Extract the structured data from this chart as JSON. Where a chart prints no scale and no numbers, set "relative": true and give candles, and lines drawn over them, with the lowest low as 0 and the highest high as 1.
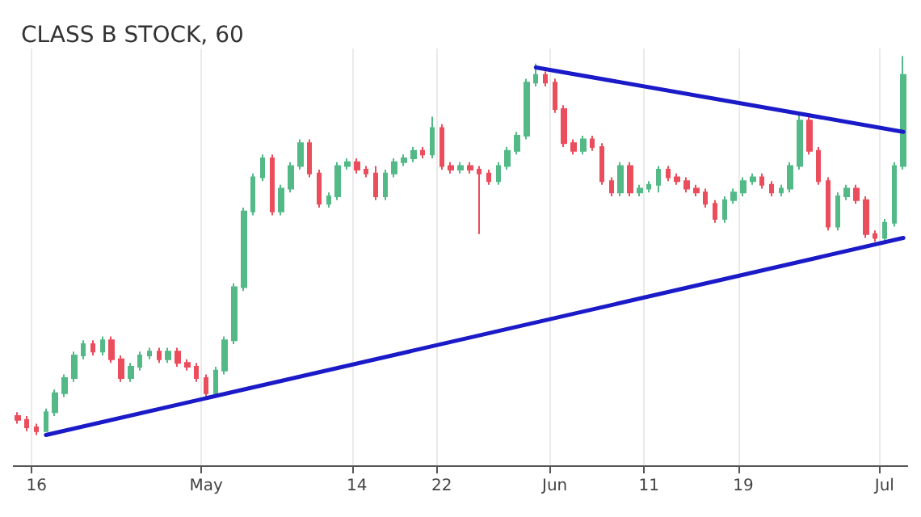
{
  "chart_data": {
    "type": "candlestick",
    "title": "CLASS B STOCK, 60",
    "relative": true,
    "grid": "x",
    "categories": [
      null,
      null,
      "16",
      null,
      null,
      null,
      null,
      null,
      null,
      null,
      null,
      null,
      null,
      null,
      null,
      null,
      null,
      null,
      null,
      null,
      "May",
      null,
      null,
      null,
      null,
      null,
      null,
      null,
      null,
      null,
      null,
      null,
      null,
      null,
      null,
      null,
      "14",
      null,
      null,
      null,
      null,
      null,
      null,
      null,
      null,
      "22",
      null,
      null,
      null,
      null,
      null,
      null,
      null,
      null,
      null,
      null,
      null,
      "Jun",
      null,
      null,
      null,
      null,
      null,
      null,
      null,
      null,
      null,
      "11",
      null,
      null,
      null,
      null,
      null,
      null,
      null,
      null,
      null,
      "19",
      null,
      null,
      null,
      null,
      null,
      null,
      null,
      null,
      null,
      null,
      null,
      null,
      null,
      null,
      "Jul",
      null,
      null
    ],
    "series": [
      {
        "colors": [
          "#eb4d5c",
          "#eb4d5c",
          "#eb4d5c",
          "#53b987",
          "#53b987",
          "#53b987",
          "#53b987",
          "#53b987",
          "#eb4d5c",
          "#53b987",
          "#eb4d5c",
          "#eb4d5c",
          "#53b987",
          "#53b987",
          "#53b987",
          "#eb4d5c",
          "#53b987",
          "#eb4d5c",
          "#eb4d5c",
          "#eb4d5c",
          "#eb4d5c",
          "#53b987",
          "#53b987",
          "#53b987",
          "#53b987",
          "#53b987",
          "#53b987",
          "#eb4d5c",
          "#53b987",
          "#53b987",
          "#53b987",
          "#eb4d5c",
          "#eb4d5c",
          "#53b987",
          "#53b987",
          "#53b987",
          "#eb4d5c",
          "#eb4d5c",
          "#eb4d5c",
          "#53b987",
          "#53b987",
          "#53b987",
          "#53b987",
          "#eb4d5c",
          "#53b987",
          "#eb4d5c",
          "#eb4d5c",
          "#53b987",
          "#eb4d5c",
          "#eb4d5c",
          "#eb4d5c",
          "#53b987",
          "#53b987",
          "#53b987",
          "#53b987",
          "#53b987",
          "#eb4d5c",
          "#eb4d5c",
          "#eb4d5c",
          "#eb4d5c",
          "#53b987",
          "#eb4d5c",
          "#eb4d5c",
          "#eb4d5c",
          "#53b987",
          "#eb4d5c",
          "#53b987",
          "#53b987",
          "#53b987",
          "#eb4d5c",
          "#eb4d5c",
          "#eb4d5c",
          "#eb4d5c",
          "#eb4d5c",
          "#eb4d5c",
          "#53b987",
          "#53b987",
          "#53b987",
          "#53b987",
          "#eb4d5c",
          "#eb4d5c",
          "#53b987",
          "#53b987",
          "#53b987",
          "#eb4d5c",
          "#eb4d5c",
          "#eb4d5c",
          "#53b987",
          "#53b987",
          "#eb4d5c",
          "#eb4d5c",
          "#eb4d5c",
          "#53b987",
          "#53b987",
          "#53b987"
        ],
        "ohlc": [
          [
            0.05,
            0.06,
            0.03,
            0.04
          ],
          [
            0.04,
            0.05,
            0.01,
            0.02
          ],
          [
            0.02,
            0.03,
            0,
            0.01
          ],
          [
            0.01,
            0.07,
            0.01,
            0.06
          ],
          [
            0.06,
            0.12,
            0.05,
            0.11
          ],
          [
            0.11,
            0.16,
            0.1,
            0.15
          ],
          [
            0.15,
            0.22,
            0.14,
            0.21
          ],
          [
            0.21,
            0.25,
            0.2,
            0.24
          ],
          [
            0.24,
            0.25,
            0.21,
            0.22
          ],
          [
            0.22,
            0.26,
            0.21,
            0.25
          ],
          [
            0.25,
            0.26,
            0.19,
            0.2
          ],
          [
            0.2,
            0.21,
            0.14,
            0.15
          ],
          [
            0.15,
            0.19,
            0.14,
            0.18
          ],
          [
            0.18,
            0.22,
            0.17,
            0.21
          ],
          [
            0.21,
            0.23,
            0.2,
            0.22
          ],
          [
            0.22,
            0.23,
            0.19,
            0.2
          ],
          [
            0.2,
            0.23,
            0.19,
            0.22
          ],
          [
            0.22,
            0.23,
            0.18,
            0.19
          ],
          [
            0.19,
            0.2,
            0.17,
            0.18
          ],
          [
            0.18,
            0.19,
            0.14,
            0.15
          ],
          [
            0.15,
            0.16,
            0.1,
            0.11
          ],
          [
            0.11,
            0.18,
            0.1,
            0.17
          ],
          [
            0.17,
            0.26,
            0.16,
            0.25
          ],
          [
            0.25,
            0.4,
            0.24,
            0.39
          ],
          [
            0.39,
            0.6,
            0.38,
            0.59
          ],
          [
            0.59,
            0.69,
            0.58,
            0.68
          ],
          [
            0.68,
            0.74,
            0.67,
            0.73
          ],
          [
            0.73,
            0.74,
            0.58,
            0.59
          ],
          [
            0.59,
            0.66,
            0.58,
            0.65
          ],
          [
            0.65,
            0.72,
            0.64,
            0.71
          ],
          [
            0.71,
            0.78,
            0.7,
            0.77
          ],
          [
            0.77,
            0.78,
            0.68,
            0.69
          ],
          [
            0.69,
            0.7,
            0.6,
            0.61
          ],
          [
            0.61,
            0.64,
            0.6,
            0.63
          ],
          [
            0.63,
            0.72,
            0.62,
            0.71
          ],
          [
            0.71,
            0.73,
            0.7,
            0.72
          ],
          [
            0.72,
            0.73,
            0.69,
            0.7
          ],
          [
            0.7,
            0.71,
            0.68,
            0.69
          ],
          [
            0.69,
            0.71,
            0.62,
            0.63
          ],
          [
            0.63,
            0.7,
            0.62,
            0.69
          ],
          [
            0.69,
            0.73,
            0.68,
            0.72
          ],
          [
            0.72,
            0.74,
            0.71,
            0.73
          ],
          [
            0.73,
            0.76,
            0.72,
            0.75
          ],
          [
            0.75,
            0.76,
            0.73,
            0.74
          ],
          [
            0.74,
            0.84,
            0.73,
            0.81
          ],
          [
            0.81,
            0.82,
            0.7,
            0.71
          ],
          [
            0.71,
            0.72,
            0.69,
            0.7
          ],
          [
            0.7,
            0.72,
            0.69,
            0.71
          ],
          [
            0.71,
            0.72,
            0.69,
            0.7
          ],
          [
            0.7,
            0.71,
            0.53,
            0.69
          ],
          [
            0.69,
            0.7,
            0.66,
            0.67
          ],
          [
            0.67,
            0.72,
            0.66,
            0.71
          ],
          [
            0.71,
            0.76,
            0.7,
            0.75
          ],
          [
            0.75,
            0.8,
            0.74,
            0.79
          ],
          [
            0.79,
            0.94,
            0.78,
            0.93
          ],
          [
            0.93,
            0.98,
            0.92,
            0.95
          ],
          [
            0.95,
            0.96,
            0.92,
            0.93
          ],
          [
            0.93,
            0.94,
            0.85,
            0.86
          ],
          [
            0.86,
            0.87,
            0.76,
            0.77
          ],
          [
            0.77,
            0.78,
            0.74,
            0.75
          ],
          [
            0.75,
            0.79,
            0.74,
            0.78
          ],
          [
            0.78,
            0.79,
            0.75,
            0.76
          ],
          [
            0.76,
            0.77,
            0.66,
            0.67
          ],
          [
            0.67,
            0.68,
            0.63,
            0.64
          ],
          [
            0.64,
            0.72,
            0.63,
            0.71
          ],
          [
            0.71,
            0.72,
            0.63,
            0.64
          ],
          [
            0.64,
            0.66,
            0.63,
            0.65
          ],
          [
            0.65,
            0.67,
            0.64,
            0.66
          ],
          [
            0.66,
            0.71,
            0.64,
            0.7
          ],
          [
            0.7,
            0.71,
            0.67,
            0.68
          ],
          [
            0.68,
            0.69,
            0.66,
            0.67
          ],
          [
            0.67,
            0.68,
            0.64,
            0.65
          ],
          [
            0.65,
            0.66,
            0.63,
            0.64
          ],
          [
            0.64,
            0.65,
            0.6,
            0.61
          ],
          [
            0.61,
            0.62,
            0.56,
            0.57
          ],
          [
            0.57,
            0.63,
            0.56,
            0.62
          ],
          [
            0.62,
            0.65,
            0.61,
            0.64
          ],
          [
            0.64,
            0.68,
            0.63,
            0.67
          ],
          [
            0.67,
            0.69,
            0.66,
            0.68
          ],
          [
            0.68,
            0.69,
            0.65,
            0.66
          ],
          [
            0.66,
            0.67,
            0.63,
            0.64
          ],
          [
            0.64,
            0.66,
            0.63,
            0.65
          ],
          [
            0.65,
            0.72,
            0.64,
            0.71
          ],
          [
            0.71,
            0.85,
            0.7,
            0.83
          ],
          [
            0.83,
            0.84,
            0.74,
            0.75
          ],
          [
            0.75,
            0.76,
            0.66,
            0.67
          ],
          [
            0.67,
            0.68,
            0.54,
            0.55
          ],
          [
            0.55,
            0.64,
            0.54,
            0.63
          ],
          [
            0.63,
            0.66,
            0.62,
            0.65
          ],
          [
            0.65,
            0.66,
            0.61,
            0.62
          ],
          [
            0.62,
            0.63,
            0.52,
            0.53
          ],
          [
            0.53,
            0.54,
            0.51,
            0.52
          ],
          [
            0.52,
            0.57,
            0.51,
            0.56
          ],
          [
            0.56,
            0.72,
            0.55,
            0.71
          ],
          [
            0.71,
            1,
            0.7,
            0.95
          ]
        ]
      },
      {
        "type": "line",
        "color": "#1a1ac8",
        "values": [
          null,
          null,
          null,
          0,
          null,
          null,
          null,
          null,
          null,
          null,
          null,
          null,
          null,
          null,
          null,
          null,
          null,
          null,
          null,
          null,
          null,
          null,
          null,
          null,
          null,
          null,
          null,
          null,
          null,
          null,
          null,
          null,
          null,
          null,
          null,
          null,
          null,
          null,
          null,
          null,
          null,
          null,
          null,
          null,
          null,
          null,
          null,
          null,
          null,
          null,
          null,
          null,
          null,
          null,
          null,
          null,
          null,
          null,
          null,
          null,
          null,
          null,
          null,
          null,
          null,
          null,
          null,
          null,
          null,
          null,
          null,
          null,
          null,
          null,
          null,
          null,
          null,
          null,
          null,
          null,
          null,
          null,
          null,
          null,
          null,
          null,
          null,
          null,
          null,
          null,
          null,
          null,
          null,
          null,
          0.52
        ]
      },
      {
        "type": "line",
        "color": "#1a1ac8",
        "values": [
          null,
          null,
          null,
          null,
          null,
          null,
          null,
          null,
          null,
          null,
          null,
          null,
          null,
          null,
          null,
          null,
          null,
          null,
          null,
          null,
          null,
          null,
          null,
          null,
          null,
          null,
          null,
          null,
          null,
          null,
          null,
          null,
          null,
          null,
          null,
          null,
          null,
          null,
          null,
          null,
          null,
          null,
          null,
          null,
          null,
          null,
          null,
          null,
          null,
          null,
          null,
          null,
          null,
          null,
          null,
          0.97,
          null,
          null,
          null,
          null,
          null,
          null,
          null,
          null,
          null,
          null,
          null,
          null,
          null,
          null,
          null,
          null,
          null,
          null,
          null,
          null,
          null,
          null,
          null,
          null,
          null,
          null,
          null,
          null,
          null,
          null,
          null,
          null,
          null,
          null,
          null,
          null,
          null,
          null,
          0.8
        ]
      }
    ]
  }
}
